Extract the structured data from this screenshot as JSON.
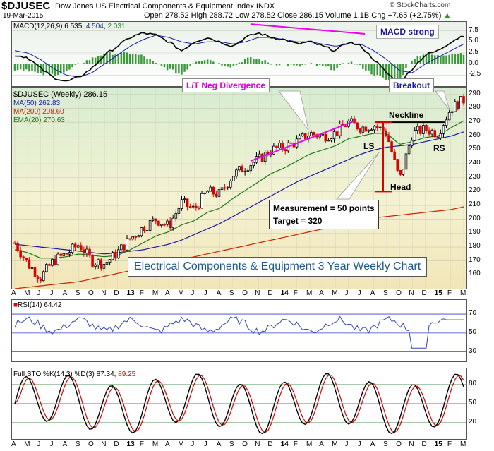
{
  "header": {
    "ticker": "$DJUSEC",
    "index_name": "Dow Jones US Electrical Components & Equipment Index INDX",
    "date": "19-Mar-2015",
    "ohlc": "Open 278.52  High 288.72  Low 278.52  Close 286.15  Volume 1.1B  Chg +7.65 (+2.75%)",
    "change_arrow": "▲",
    "brand": "© StockCharts.com"
  },
  "macd": {
    "label": "MACD(12,26,9)",
    "val1": "6.535",
    "val2": "4.504",
    "val3": "2.031",
    "ticks": [
      "7.5",
      "5.0",
      "2.5",
      "0.0",
      "-2.5"
    ]
  },
  "price": {
    "label": "$DJUSEC (Weekly) 286.15",
    "ma50": "MA(50) 262.83",
    "ma200": "MA(200) 208.60",
    "ema20": "EMA(20) 270.63",
    "ticks": [
      "290",
      "280",
      "270",
      "260",
      "250",
      "240",
      "230",
      "220",
      "210",
      "200",
      "190",
      "180",
      "170",
      "160"
    ]
  },
  "annotations": {
    "macd_strong": "MACD strong",
    "lt_neg_div": "L/T Neg Divergence",
    "breakout": "Breakout",
    "neckline": "Neckline",
    "ls": "LS",
    "rs": "RS",
    "head": "Head",
    "measurement": "Measurement = 50 points",
    "target": "Target = 320",
    "title": "Electrical Components & Equipment 3 Year Weekly Chart"
  },
  "rsi": {
    "label": "RSI(14)",
    "value": "64.42",
    "ticks": [
      "70",
      "50",
      "30"
    ]
  },
  "sto": {
    "label": "Full STO %K(14,3) %D(3)",
    "k": "87.34",
    "d": "89.25",
    "ticks": [
      "80",
      "50",
      "20"
    ]
  },
  "x_labels": [
    "A",
    "M",
    "J",
    "J",
    "A",
    "S",
    "O",
    "N",
    "D",
    "13",
    "F",
    "M",
    "A",
    "M",
    "J",
    "J",
    "A",
    "S",
    "O",
    "N",
    "D",
    "14",
    "F",
    "M",
    "A",
    "M",
    "J",
    "J",
    "A",
    "S",
    "O",
    "N",
    "D",
    "15",
    "F",
    "M"
  ],
  "colors": {
    "up": "#000000",
    "down": "#dd0000",
    "ma50": "#1a1aa8",
    "ma200": "#cc2200",
    "ema20": "#1a7a1a",
    "macd_hist": "#3a9a3a",
    "rsi": "#3344bb",
    "sto_d": "#dd0000"
  },
  "chart_data": {
    "type": "line",
    "price_range": [
      150,
      295
    ],
    "points": [
      {
        "x": "2012-04",
        "close": 183
      },
      {
        "x": "2012-05",
        "close": 168
      },
      {
        "x": "2012-06",
        "close": 158
      },
      {
        "x": "2012-07",
        "close": 170
      },
      {
        "x": "2012-08",
        "close": 175
      },
      {
        "x": "2012-09",
        "close": 182
      },
      {
        "x": "2012-10",
        "close": 170
      },
      {
        "x": "2012-11",
        "close": 168
      },
      {
        "x": "2012-12",
        "close": 176
      },
      {
        "x": "2013-01",
        "close": 186
      },
      {
        "x": "2013-02",
        "close": 194
      },
      {
        "x": "2013-03",
        "close": 200
      },
      {
        "x": "2013-04",
        "close": 195
      },
      {
        "x": "2013-05",
        "close": 212
      },
      {
        "x": "2013-06",
        "close": 207
      },
      {
        "x": "2013-07",
        "close": 220
      },
      {
        "x": "2013-08",
        "close": 218
      },
      {
        "x": "2013-09",
        "close": 232
      },
      {
        "x": "2013-10",
        "close": 238
      },
      {
        "x": "2013-11",
        "close": 243
      },
      {
        "x": "2013-12",
        "close": 250
      },
      {
        "x": "2014-01",
        "close": 252
      },
      {
        "x": "2014-02",
        "close": 256
      },
      {
        "x": "2014-03",
        "close": 262
      },
      {
        "x": "2014-04",
        "close": 260
      },
      {
        "x": "2014-05",
        "close": 262
      },
      {
        "x": "2014-06",
        "close": 270
      },
      {
        "x": "2014-07",
        "close": 266
      },
      {
        "x": "2014-08",
        "close": 268
      },
      {
        "x": "2014-09",
        "close": 262
      },
      {
        "x": "2014-10",
        "close": 228
      },
      {
        "x": "2014-11",
        "close": 262
      },
      {
        "x": "2014-12",
        "close": 265
      },
      {
        "x": "2015-01",
        "close": 262
      },
      {
        "x": "2015-02",
        "close": 280
      },
      {
        "x": "2015-03",
        "close": 286
      }
    ],
    "ma50": [
      182,
      181,
      180,
      179,
      178,
      177,
      176,
      175,
      176,
      177,
      178,
      180,
      182,
      185,
      189,
      193,
      197,
      202,
      207,
      212,
      217,
      222,
      227,
      231,
      235,
      239,
      243,
      247,
      250,
      252,
      253,
      254,
      256,
      258,
      260,
      263
    ],
    "ema20": [
      178,
      176,
      172,
      172,
      173,
      175,
      174,
      173,
      174,
      178,
      183,
      188,
      191,
      196,
      199,
      205,
      208,
      215,
      221,
      227,
      233,
      237,
      242,
      247,
      250,
      253,
      258,
      260,
      262,
      262,
      254,
      256,
      259,
      260,
      266,
      271
    ],
    "ma200": [
      150,
      151,
      152,
      153,
      154,
      155,
      157,
      159,
      161,
      163,
      165,
      167,
      169,
      171,
      173,
      175,
      177,
      179,
      181,
      183,
      185,
      187,
      189,
      191,
      193,
      195,
      197,
      199,
      201,
      202,
      203,
      204,
      205,
      206,
      207,
      209
    ]
  }
}
